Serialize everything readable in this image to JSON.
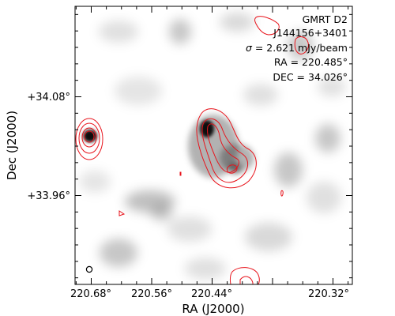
{
  "image": {
    "survey": "GMRT D2",
    "source": "J144156+3401",
    "noise_symbol": "σ",
    "noise_value": "2.621 mJy/beam",
    "ra_text": "RA = 220.485°",
    "dec_text": "DEC = 34.026°"
  },
  "axes": {
    "xlabel": "RA (J2000)",
    "ylabel": "Dec (J2000)",
    "x_ticks": [
      "220.68°",
      "220.56°",
      "220.44°",
      "220.32°"
    ],
    "y_ticks": [
      "+34.08°",
      "+33.96°"
    ]
  },
  "colors": {
    "contour": "#e8141c",
    "background_map": "grayscale"
  },
  "icons": {
    "beam": "beam-ellipse-icon"
  }
}
